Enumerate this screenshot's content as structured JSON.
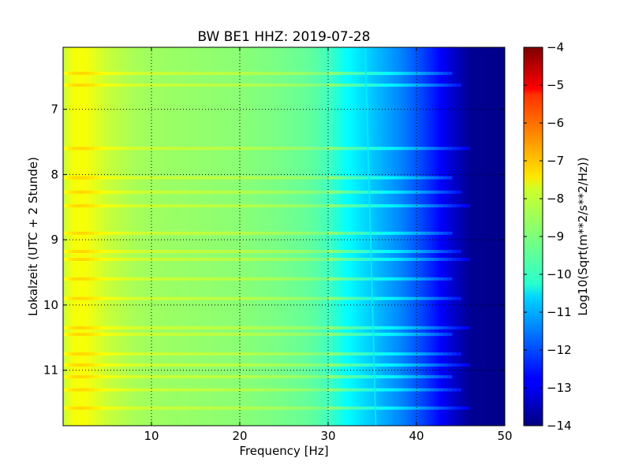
{
  "chart_data": {
    "type": "heatmap",
    "title": "BW BE1 HHZ: 2019-07-28",
    "xlabel": "Frequency [Hz]",
    "ylabel": "Lokalzeit (UTC + 2 Stunde)",
    "xlim": [
      0,
      50
    ],
    "ylim": [
      11.85,
      6.05
    ],
    "y_inverted": true,
    "xticks": [
      10,
      20,
      30,
      40,
      50
    ],
    "xtick_labels": [
      "10",
      "20",
      "30",
      "40",
      "50"
    ],
    "yticks": [
      7,
      8,
      9,
      10,
      11
    ],
    "ytick_labels": [
      "7",
      "8",
      "9",
      "10",
      "11"
    ],
    "grid": true,
    "colorbar": {
      "label": "Log10(Sqrt(m**2/s**2/Hz))",
      "colormap": "jet",
      "range": [
        -14,
        -4
      ],
      "ticks": [
        -4,
        -5,
        -6,
        -7,
        -8,
        -9,
        -10,
        -11,
        -12,
        -13,
        -14
      ],
      "tick_labels": [
        "−4",
        "−5",
        "−6",
        "−7",
        "−8",
        "−9",
        "−10",
        "−11",
        "−12",
        "−13",
        "−14"
      ]
    },
    "frequency_profile": {
      "frequency_hz": [
        0,
        1,
        2,
        3,
        5,
        8,
        10,
        15,
        20,
        25,
        28,
        30,
        32,
        35,
        38,
        40,
        42,
        44,
        46,
        50
      ],
      "value": [
        -8.3,
        -7.9,
        -7.8,
        -7.9,
        -8.3,
        -8.6,
        -8.7,
        -8.8,
        -8.9,
        -9.1,
        -9.3,
        -9.6,
        -10.2,
        -10.8,
        -11.4,
        -11.9,
        -12.5,
        -13.2,
        -13.8,
        -13.9
      ]
    },
    "spectral_line": {
      "frequency_hz_start": 34.2,
      "frequency_hz_end": 35.4,
      "value": -10.4
    },
    "bright_time_bands": [
      6.45,
      6.63,
      7.6,
      8.05,
      8.27,
      8.48,
      8.9,
      9.18,
      9.3,
      9.6,
      9.9,
      10.35,
      10.45,
      10.75,
      10.92,
      11.1,
      11.3,
      11.58
    ]
  }
}
